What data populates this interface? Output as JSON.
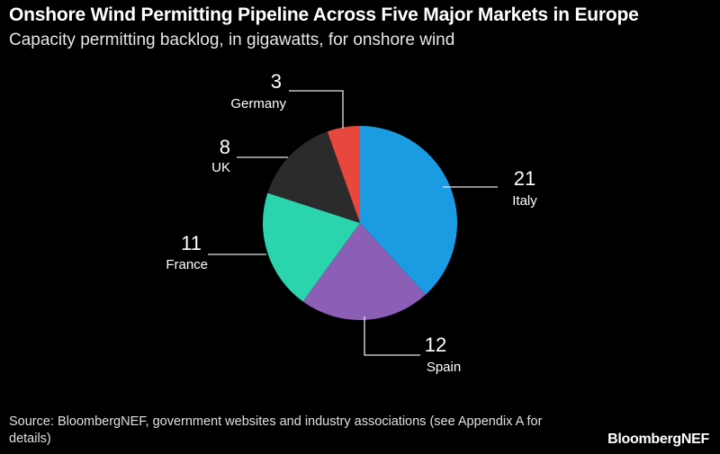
{
  "header": {
    "title": "Onshore Wind Permitting Pipeline Across Five Major Markets in Europe",
    "subtitle": "Capacity permitting backlog, in gigawatts, for onshore wind"
  },
  "footer": {
    "source": "Source: BloombergNEF, government websites and industry associations (see Appendix A for details)",
    "brand": "BloombergNEF"
  },
  "chart_data": {
    "type": "pie",
    "title": "Onshore Wind Permitting Pipeline Across Five Major Markets in Europe",
    "subtitle": "Capacity permitting backlog, in gigawatts, for onshore wind",
    "unit": "gigawatts",
    "slices": [
      {
        "label": "Italy",
        "value": 21,
        "color": "#1b9ce2"
      },
      {
        "label": "Spain",
        "value": 12,
        "color": "#8c5fb6"
      },
      {
        "label": "France",
        "value": 11,
        "color": "#2ad4ac"
      },
      {
        "label": "UK",
        "value": 8,
        "color": "#2b2b2b"
      },
      {
        "label": "Germany",
        "value": 3,
        "color": "#e8473e"
      }
    ],
    "start": "12 o'clock, clockwise",
    "label_color": "#ffffff",
    "leader_color": "#e6e6e6"
  }
}
